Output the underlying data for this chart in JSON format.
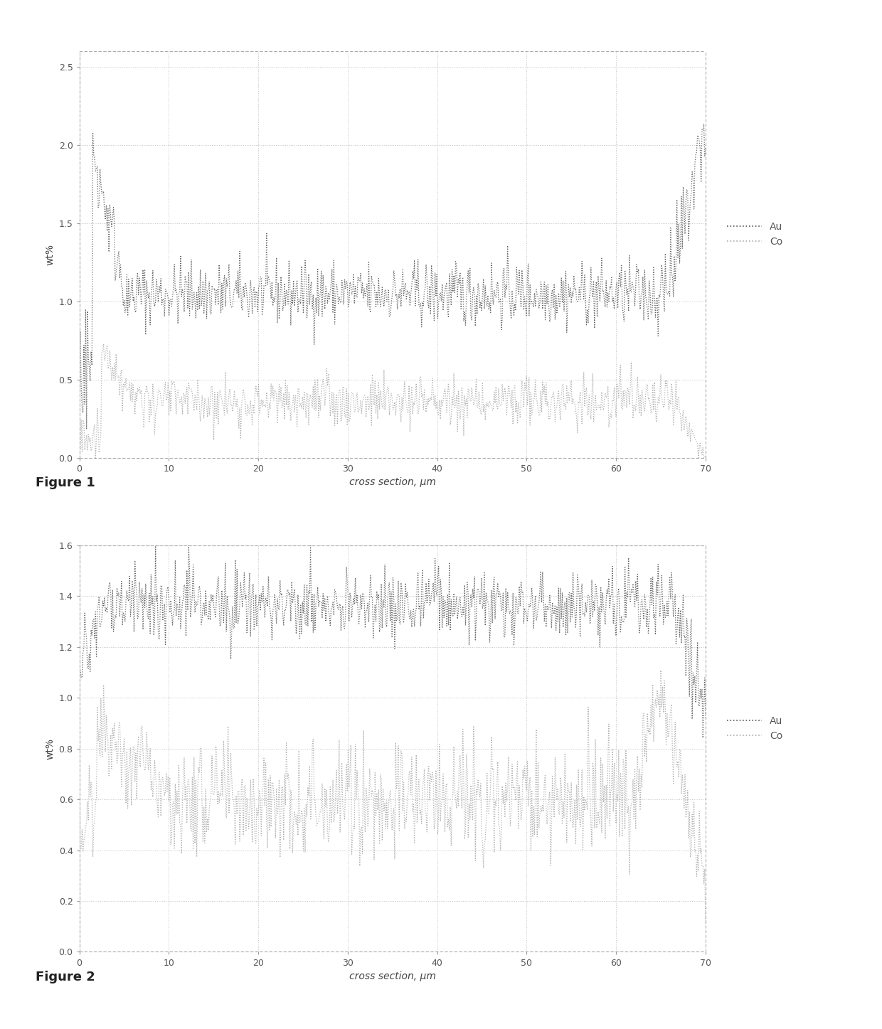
{
  "fig1": {
    "xlabel": "cross section, μm",
    "ylabel": "wt%",
    "xlim": [
      0,
      70
    ],
    "ylim": [
      0,
      2.6
    ],
    "yticks": [
      0,
      0.5,
      1.0,
      1.5,
      2.0,
      2.5
    ],
    "xticks": [
      0,
      10,
      20,
      30,
      40,
      50,
      60,
      70
    ],
    "Au_color": "#555555",
    "Co_color": "#aaaaaa",
    "legend_labels": [
      "Au",
      "Co"
    ]
  },
  "fig2": {
    "xlabel": "cross section, μm",
    "ylabel": "wt%",
    "xlim": [
      0,
      70
    ],
    "ylim": [
      0,
      1.6
    ],
    "yticks": [
      0,
      0.2,
      0.4,
      0.6,
      0.8,
      1.0,
      1.2,
      1.4,
      1.6
    ],
    "xticks": [
      0,
      10,
      20,
      30,
      40,
      50,
      60,
      70
    ],
    "Au_color": "#555555",
    "Co_color": "#aaaaaa",
    "legend_labels": [
      "Au",
      "Co"
    ]
  },
  "figure1_label": "Figure 1",
  "figure2_label": "Figure 2",
  "background_color": "#ffffff",
  "plot_bg_color": "#ffffff",
  "grid_color": "#cccccc"
}
